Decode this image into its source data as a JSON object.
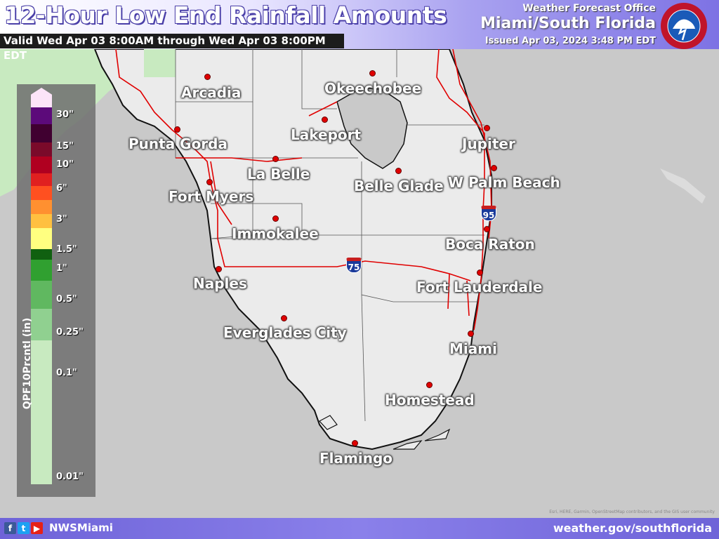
{
  "header": {
    "title": "12-Hour Low End Rainfall Amounts",
    "valid": "Valid Wed Apr 03 8:00AM through Wed Apr 03 8:00PM EDT",
    "office_line1": "Weather Forecast Office",
    "office_line2": "Miami/South Florida",
    "issued": "Issued Apr 03, 2024 3:48 PM EDT",
    "logo_icon": "nws-logo-icon"
  },
  "legend": {
    "title": "QPF10Prcntl (in)",
    "ticks": [
      "30\"",
      "15\"",
      "10\"",
      "6\"",
      "3\"",
      "1.5\"",
      "1\"",
      "0.5\"",
      "0.25\"",
      "0.1\"",
      "0.01\""
    ],
    "colors": [
      "#fce4f8",
      "#5c0a7a",
      "#400030",
      "#7a0a2a",
      "#b00020",
      "#e02020",
      "#ff5020",
      "#ff9030",
      "#ffc040",
      "#ffff80",
      "#106010",
      "#30a030",
      "#60b860",
      "#90d090",
      "#c8eac0"
    ]
  },
  "cities": [
    "Arcadia",
    "Okeechobee",
    "Punta Gorda",
    "Lakeport",
    "Jupiter",
    "La Belle",
    "Belle Glade",
    "W Palm Beach",
    "Fort Myers",
    "Immokalee",
    "Boca Raton",
    "Naples",
    "Fort Lauderdale",
    "Everglades City",
    "Miami",
    "Homestead",
    "Flamingo"
  ],
  "highway_shields": [
    "95",
    "75"
  ],
  "attribution": "Esri, HERE, Garmin, OpenStreetMap contributors, and the GIS user community",
  "footer": {
    "social_icons": [
      "facebook-icon",
      "twitter-icon",
      "youtube-icon"
    ],
    "handle": "NWSMiami",
    "website": "weather.gov/southflorida"
  },
  "colors": {
    "land": "#ebebeb",
    "water": "#c9c9c9",
    "light_rain": "#c8eac0",
    "roads": "#e00000"
  }
}
